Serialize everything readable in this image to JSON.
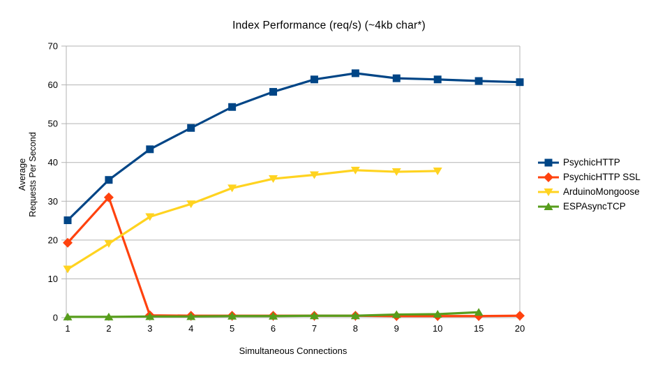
{
  "chart": {
    "title": "Index Performance (req/s) (~4kb char*)"
  },
  "axes": {
    "x_title": "Simultaneous Connections",
    "y_title_multiline": "Average\nRequests Per Second"
  },
  "chart_data": {
    "type": "line",
    "title": "Index Performance (req/s) (~4kb char*)",
    "xlabel": "Simultaneous Connections",
    "ylabel": "Average Requests Per Second",
    "categories": [
      "1",
      "2",
      "3",
      "4",
      "5",
      "6",
      "7",
      "8",
      "9",
      "10",
      "15",
      "20"
    ],
    "y_ticks": [
      0,
      10,
      20,
      30,
      40,
      50,
      60,
      70
    ],
    "ylim": [
      0,
      70
    ],
    "grid": "horizontal",
    "legend_position": "right",
    "series": [
      {
        "name": "PsychicHTTP",
        "color": "#004586",
        "marker": "square",
        "values": [
          25.1,
          35.5,
          43.4,
          48.9,
          54.3,
          58.2,
          61.4,
          63.0,
          61.7,
          61.4,
          61.0,
          60.7
        ]
      },
      {
        "name": "PsychicHTTP SSL",
        "color": "#FF420E",
        "marker": "diamond",
        "values": [
          19.3,
          31.0,
          0.6,
          0.5,
          0.5,
          0.5,
          0.5,
          0.5,
          0.4,
          0.4,
          0.4,
          0.5
        ]
      },
      {
        "name": "ArduinoMongoose",
        "color": "#FFD320",
        "marker": "triangle-down",
        "values": [
          12.5,
          19.1,
          26.0,
          29.3,
          33.4,
          35.8,
          36.8,
          38.0,
          37.6,
          37.8,
          null,
          null
        ]
      },
      {
        "name": "ESPAsyncTCP",
        "color": "#579D1C",
        "marker": "triangle-up",
        "values": [
          0.2,
          0.2,
          0.3,
          0.3,
          0.4,
          0.4,
          0.5,
          0.5,
          0.8,
          0.9,
          1.4,
          null
        ]
      }
    ],
    "colors": {
      "background": "#ffffff",
      "grid": "#b3b3b3",
      "axis": "#b3b3b3",
      "text": "#000000"
    }
  }
}
